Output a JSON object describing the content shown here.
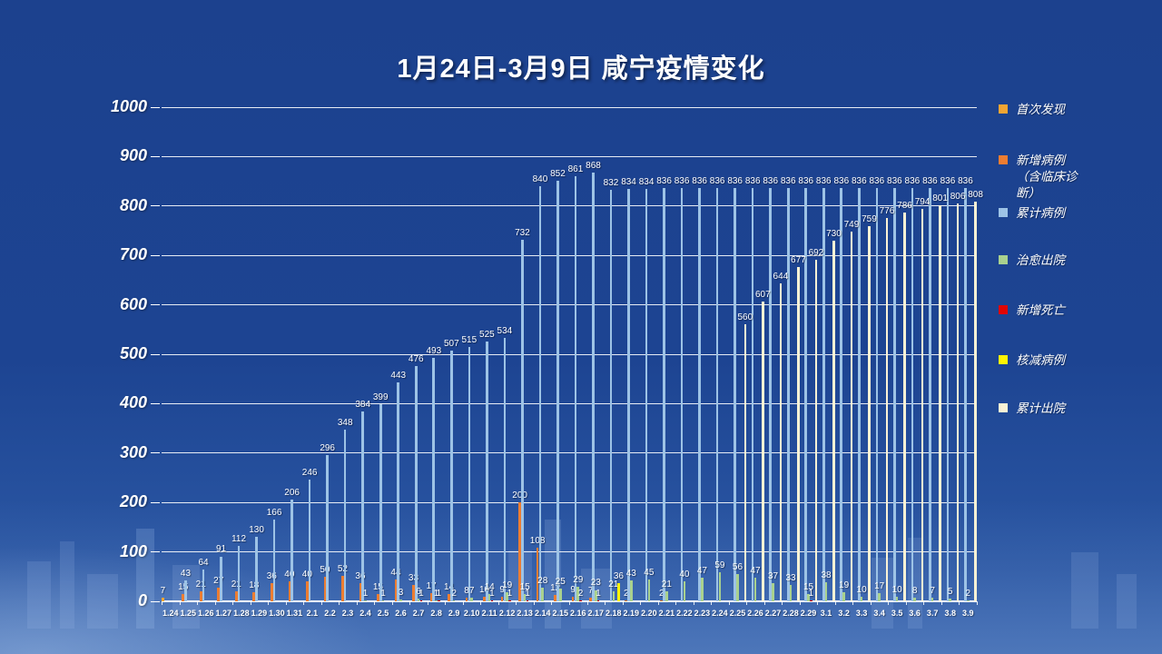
{
  "chart_data": {
    "type": "bar",
    "title": "1月24日-3月9日 咸宁疫情变化",
    "xlabel": "",
    "ylabel": "",
    "grid": true,
    "legend_position": "right",
    "y_axis": {
      "min": 0,
      "max": 1000,
      "step": 100,
      "ticks": [
        0,
        100,
        200,
        300,
        400,
        500,
        600,
        700,
        800,
        900,
        1000
      ]
    },
    "categories": [
      "1.24",
      "1.25",
      "1.26",
      "1.27",
      "1.28",
      "1.29",
      "1.30",
      "1.31",
      "2.1",
      "2.2",
      "2.3",
      "2.4",
      "2.5",
      "2.6",
      "2.7",
      "2.8",
      "2.9",
      "2.10",
      "2.11",
      "2.12",
      "2.13",
      "2.14",
      "2.15",
      "2.16",
      "2.17",
      "2.18",
      "2.19",
      "2.20",
      "2.21",
      "2.22",
      "2.23",
      "2.24",
      "2.25",
      "2.26",
      "2.27",
      "2.28",
      "2.29",
      "3.1",
      "3.2",
      "3.3",
      "3.4",
      "3.5",
      "3.6",
      "3.7",
      "3.8",
      "3.9"
    ],
    "series": [
      {
        "name": "首次发现",
        "color": "#F2A533",
        "values": [
          7,
          null,
          null,
          null,
          null,
          null,
          null,
          null,
          null,
          null,
          null,
          null,
          null,
          null,
          null,
          null,
          null,
          null,
          null,
          null,
          null,
          null,
          null,
          null,
          null,
          null,
          null,
          null,
          null,
          null,
          null,
          null,
          null,
          null,
          null,
          null,
          null,
          null,
          null,
          null,
          null,
          null,
          null,
          null,
          null,
          null
        ]
      },
      {
        "name": "新增病例（含临床诊断）",
        "color": "#ED7D31",
        "values": [
          null,
          15,
          21,
          27,
          21,
          18,
          36,
          40,
          40,
          50,
          52,
          36,
          15,
          44,
          33,
          17,
          14,
          8,
          10,
          9,
          200,
          108,
          12,
          9,
          7,
          null,
          2,
          null,
          2,
          null,
          null,
          null,
          null,
          null,
          null,
          null,
          null,
          null,
          null,
          null,
          null,
          null,
          null,
          null,
          null,
          null
        ]
      },
      {
        "name": "累计病例",
        "color": "#9DC3E6",
        "values": [
          null,
          43,
          64,
          91,
          112,
          130,
          166,
          206,
          246,
          296,
          348,
          384,
          399,
          443,
          476,
          493,
          507,
          515,
          525,
          534,
          732,
          840,
          852,
          861,
          868,
          832,
          834,
          834,
          836,
          836,
          836,
          836,
          836,
          836,
          836,
          836,
          836,
          836,
          836,
          836,
          836,
          836,
          836,
          836,
          836,
          836
        ]
      },
      {
        "name": "治愈出院",
        "color": "#A9D18E",
        "values": [
          null,
          null,
          null,
          null,
          null,
          null,
          null,
          null,
          null,
          null,
          null,
          1,
          1,
          3,
          6,
          1,
          2,
          7,
          14,
          19,
          15,
          28,
          25,
          29,
          23,
          21,
          43,
          45,
          21,
          40,
          47,
          59,
          56,
          47,
          37,
          33,
          15,
          38,
          19,
          10,
          17,
          10,
          8,
          7,
          5,
          2
        ]
      },
      {
        "name": "新增死亡",
        "color": "#E10600",
        "values": [
          null,
          null,
          null,
          null,
          null,
          null,
          null,
          null,
          null,
          null,
          null,
          null,
          null,
          null,
          1,
          1,
          null,
          null,
          1,
          1,
          1,
          null,
          null,
          2,
          1,
          null,
          null,
          null,
          null,
          null,
          null,
          null,
          null,
          null,
          null,
          null,
          1,
          null,
          null,
          null,
          null,
          null,
          null,
          null,
          null,
          null
        ]
      },
      {
        "name": "核减病例",
        "color": "#FFF400",
        "values": [
          null,
          null,
          null,
          null,
          null,
          null,
          null,
          null,
          null,
          null,
          null,
          null,
          null,
          null,
          null,
          null,
          null,
          null,
          null,
          null,
          null,
          null,
          null,
          null,
          null,
          36,
          null,
          null,
          null,
          null,
          null,
          null,
          null,
          null,
          null,
          null,
          null,
          null,
          null,
          null,
          null,
          null,
          null,
          null,
          null,
          null
        ]
      },
      {
        "name": "累计出院",
        "color": "#FBF2D5",
        "values": [
          null,
          null,
          null,
          null,
          null,
          null,
          null,
          null,
          null,
          null,
          null,
          null,
          null,
          null,
          null,
          null,
          null,
          null,
          null,
          null,
          null,
          null,
          null,
          null,
          null,
          null,
          null,
          null,
          null,
          null,
          null,
          null,
          560,
          607,
          644,
          677,
          692,
          730,
          749,
          759,
          776,
          786,
          794,
          801,
          806,
          808
        ]
      }
    ],
    "legend": [
      {
        "label": "首次发现",
        "lines": [
          "首次发现"
        ],
        "color": "#F2A533"
      },
      {
        "label": "新增病例（含临床诊断）",
        "lines": [
          "新增病例",
          "（含临床诊",
          "断）"
        ],
        "color": "#ED7D31"
      },
      {
        "label": "累计病例",
        "lines": [
          "累计病例"
        ],
        "color": "#9DC3E6"
      },
      {
        "label": "治愈出院",
        "lines": [
          "治愈出院"
        ],
        "color": "#A9D18E"
      },
      {
        "label": "新增死亡",
        "lines": [
          "新增死亡"
        ],
        "color": "#E10600"
      },
      {
        "label": "核减病例",
        "lines": [
          "核减病例"
        ],
        "color": "#FFF400"
      },
      {
        "label": "累计出院",
        "lines": [
          "累计出院"
        ],
        "color": "#FBF2D5"
      }
    ],
    "colors": {
      "background": "#1D4492",
      "text": "#FFFFFF",
      "gridline": "#FFFFFF"
    }
  }
}
